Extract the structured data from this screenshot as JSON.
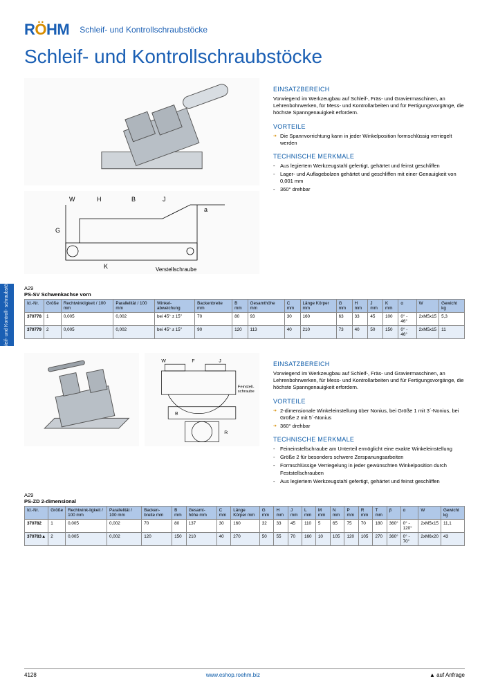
{
  "logo_text": "RÖHM",
  "breadcrumb": "Schleif- und Kontrollschraubstöcke",
  "side_tab": "Schleif- und Kontroll-\nschraubstöcke",
  "page_title": "Schleif- und Kontrollschraubstöcke",
  "colors": {
    "brand_blue": "#1a5fb4",
    "accent_orange": "#d68c00",
    "table_header_bg": "#b0c8e8",
    "table_alt_row": "#e6eef8",
    "link": "#0b5aa8"
  },
  "product1": {
    "code": "A29",
    "name": "PS-SV Schwenkachse vorn",
    "sections": {
      "einsatz_head": "EINSATZBEREICH",
      "einsatz_text": "Vorwiegend im Werkzeugbau auf Schleif-, Fräs- und Graviermaschinen, an Lehrenbohrwerken, für Mess- und Kontrollarbeiten und für Fertigungsvorgänge, die höchste Spanngenauigkeit erfordern.",
      "vorteile_head": "VORTEILE",
      "vorteile": [
        "Die Spannvorrichtung kann in jeder Winkelposition formschlüssig verriegelt werden"
      ],
      "tech_head": "TECHNISCHE MERKMALE",
      "tech": [
        "Aus legiertem Werkzeugstahl gefertigt, gehärtet und feinst geschliffen",
        "Lager- und Auflagebolzen gehärtet und geschliffen mit einer Genauigkeit von 0,001 mm",
        "360° drehbar"
      ]
    },
    "table": {
      "columns": [
        "Id.-Nr.",
        "Größe",
        "Rechtwinkligkeit / 100 mm",
        "Parallelität / 100 mm",
        "Winkel-abweichung",
        "Backenbreite mm",
        "B mm",
        "Gesamthöhe mm",
        "C mm",
        "Länge Körper mm",
        "G mm",
        "H mm",
        "J mm",
        "K mm",
        "α",
        "W",
        "Gewicht kg"
      ],
      "rows": [
        [
          "370778",
          "1",
          "0,005",
          "0,002",
          "bei 45° ± 15″",
          "70",
          "80",
          "93",
          "30",
          "160",
          "63",
          "33",
          "45",
          "100",
          "0° - 46°",
          "2xM5x15",
          "5,3"
        ],
        [
          "370779",
          "2",
          "0,005",
          "0,002",
          "bei 45° ± 15″",
          "90",
          "120",
          "113",
          "40",
          "210",
          "73",
          "40",
          "50",
          "150",
          "0° - 46°",
          "2xM5x15",
          "11"
        ]
      ]
    }
  },
  "product2": {
    "code": "A29",
    "name": "PS-ZD 2-dimensional",
    "sections": {
      "einsatz_head": "EINSATZBEREICH",
      "einsatz_text": "Vorwiegend im Werkzeugbau auf Schleif-, Fräs- und Graviermaschinen, an Lehrenbohrwerken, für Mess- und Kontrollarbeiten und für Fertigungsvorgänge, die höchste Spanngenauigkeit erfordern.",
      "vorteile_head": "VORTEILE",
      "vorteile": [
        "2-dimensionale Winkeleinstellung über Nonius, bei Größe 1 mit 3´-Nonius, bei Größe 2 mit 5´-Nonius",
        "360° drehbar"
      ],
      "tech_head": "TECHNISCHE MERKMALE",
      "tech": [
        "Feineinstellschraube am Unterteil ermöglicht eine exakte Winkeleinstellung",
        "Größe 2 für besonders schwere Zerspanungsarbeiten",
        "Formschlüssige Verriegelung in jeder gewünschten Winkelposition durch Feststellschrauben",
        "Aus legiertem Werkzeugstahl gefertigt, gehärtet und feinst geschliffen"
      ]
    },
    "table": {
      "columns": [
        "Id.-Nr.",
        "Größe",
        "Rechtwink-ligkeit / 100 mm",
        "Parallelität / 100 mm",
        "Backen-breite mm",
        "B mm",
        "Gesamt-höhe mm",
        "C mm",
        "Länge Körper mm",
        "G mm",
        "H mm",
        "J mm",
        "L mm",
        "M mm",
        "N mm",
        "P mm",
        "R mm",
        "T mm",
        "β",
        "α",
        "W",
        "Gewicht kg"
      ],
      "rows": [
        [
          "370782",
          "1",
          "0,005",
          "0,002",
          "70",
          "80",
          "137",
          "30",
          "160",
          "32",
          "33",
          "45",
          "110",
          "5",
          "65",
          "75",
          "70",
          "180",
          "360°",
          "0° - 120°",
          "2xM5x15",
          "11,1"
        ],
        [
          "370783▲",
          "2",
          "0,005",
          "0,002",
          "120",
          "150",
          "210",
          "40",
          "270",
          "50",
          "55",
          "70",
          "160",
          "10",
          "105",
          "120",
          "105",
          "270",
          "360°",
          "0° - 70°",
          "2xM6x20",
          "43"
        ]
      ]
    }
  },
  "footer": {
    "page_number": "4128",
    "url": "www.eshop.roehm.biz",
    "note": "▲ auf Anfrage"
  }
}
